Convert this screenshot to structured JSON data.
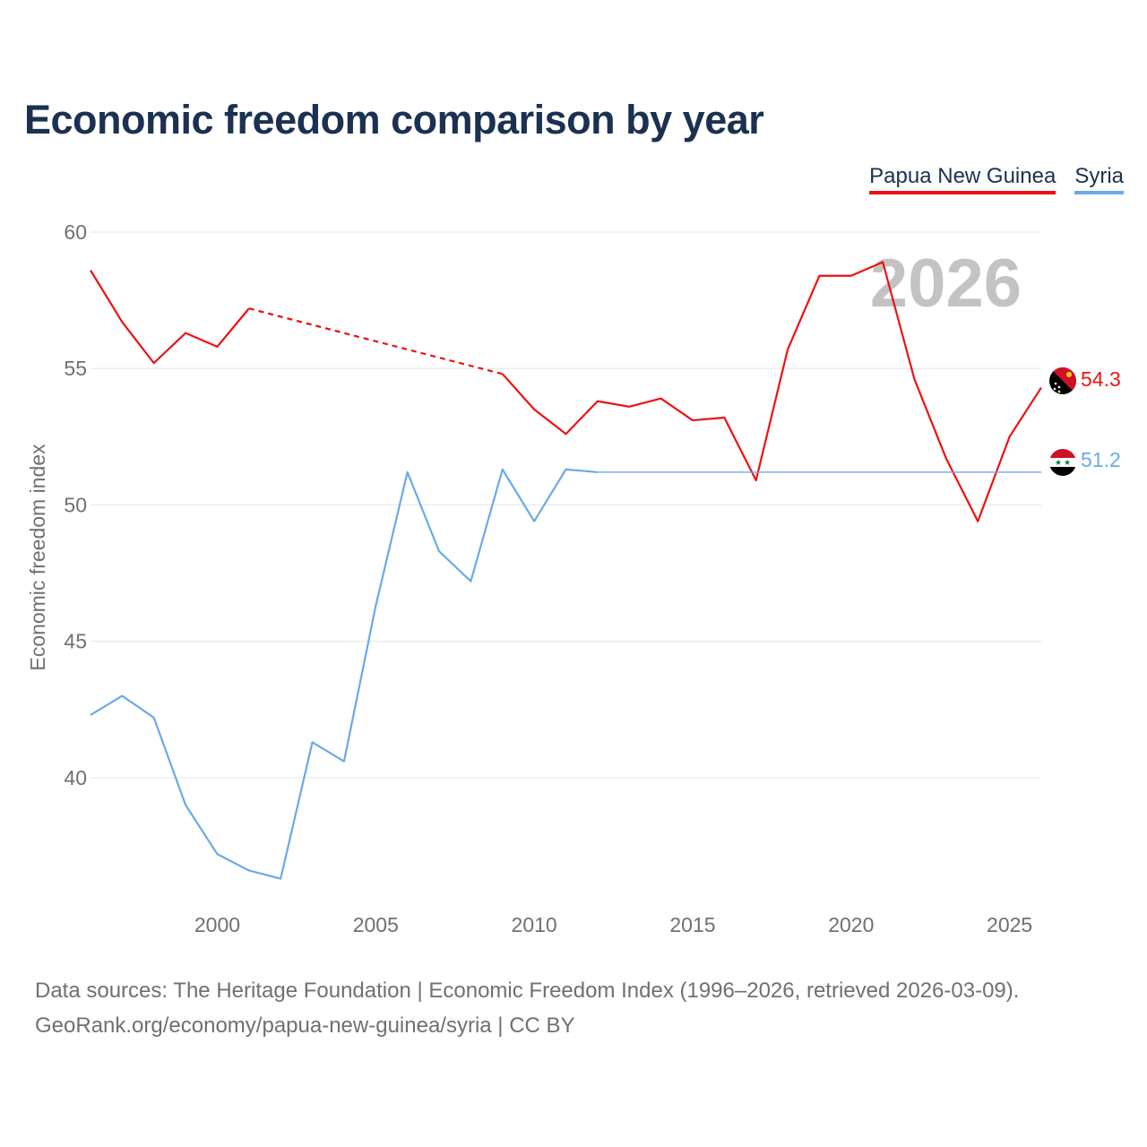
{
  "title": "Economic freedom comparison by year",
  "legend": [
    {
      "label": "Papua New Guinea",
      "color": "#ee1111"
    },
    {
      "label": "Syria",
      "color": "#6aaae8"
    }
  ],
  "footer": {
    "line1": "Data sources: The Heritage Foundation | Economic Freedom Index (1996–2026, retrieved 2026-03-09).",
    "line2": "GeoRank.org/economy/papua-new-guinea/syria | CC BY"
  },
  "chart_data": {
    "type": "line",
    "title": "Economic freedom comparison by year",
    "ylabel": "Economic freedom index",
    "xlabel": "",
    "xlim": [
      1996,
      2026
    ],
    "ylim": [
      35.3,
      60
    ],
    "y_ticks": [
      40,
      45,
      50,
      55,
      60
    ],
    "x_ticks": [
      2000,
      2005,
      2010,
      2015,
      2020,
      2025
    ],
    "grid": true,
    "watermark_year": "2026",
    "series": [
      {
        "name": "Papua New Guinea",
        "color": "#ee1111",
        "end_label": "54.3",
        "points": [
          [
            1996,
            58.6
          ],
          [
            1997,
            56.7
          ],
          [
            1998,
            55.2
          ],
          [
            1999,
            56.3
          ],
          [
            2000,
            55.8
          ],
          [
            2001,
            57.2
          ],
          [
            2009,
            54.8
          ],
          [
            2010,
            53.5
          ],
          [
            2011,
            52.6
          ],
          [
            2012,
            53.8
          ],
          [
            2013,
            53.6
          ],
          [
            2014,
            53.9
          ],
          [
            2015,
            53.1
          ],
          [
            2016,
            53.2
          ],
          [
            2017,
            50.9
          ],
          [
            2018,
            55.7
          ],
          [
            2019,
            58.4
          ],
          [
            2020,
            58.4
          ],
          [
            2021,
            58.9
          ],
          [
            2022,
            54.6
          ],
          [
            2023,
            51.7
          ],
          [
            2024,
            49.4
          ],
          [
            2025,
            52.5
          ],
          [
            2026,
            54.3
          ]
        ],
        "dashed_segments": [
          [
            2001,
            2009
          ]
        ]
      },
      {
        "name": "Syria",
        "color": "#6aaae8",
        "end_label": "51.2",
        "points": [
          [
            1996,
            42.3
          ],
          [
            1997,
            43.0
          ],
          [
            1998,
            42.2
          ],
          [
            1999,
            39.0
          ],
          [
            2000,
            37.2
          ],
          [
            2001,
            36.6
          ],
          [
            2002,
            36.3
          ],
          [
            2003,
            41.3
          ],
          [
            2004,
            40.6
          ],
          [
            2005,
            46.3
          ],
          [
            2006,
            51.2
          ],
          [
            2007,
            48.3
          ],
          [
            2008,
            47.2
          ],
          [
            2009,
            51.3
          ],
          [
            2010,
            49.4
          ],
          [
            2011,
            51.3
          ],
          [
            2012,
            51.2
          ]
        ],
        "carried_forward": {
          "from": 2012,
          "to": 2026,
          "value": 51.2
        }
      }
    ]
  }
}
